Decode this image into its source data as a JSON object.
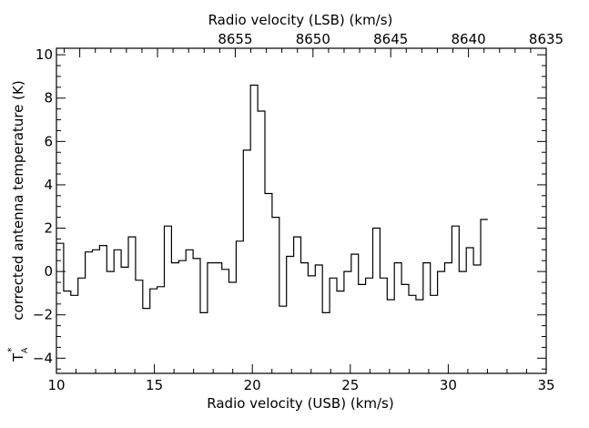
{
  "chart_data": {
    "type": "line",
    "style": "step",
    "xlabel": "Radio velocity (USB) (km/s)",
    "x2label": "Radio velocity (LSB) (km/s)",
    "ylabel": "corrected antenna temperature (K)",
    "ylabel_symbol": "T",
    "ylabel_sub": "A",
    "ylabel_sup": "*",
    "xlim": [
      10,
      35
    ],
    "ylim": [
      -4.7,
      10.3
    ],
    "x2lim": [
      8666.5,
      8635
    ],
    "xticks": [
      10,
      15,
      20,
      25,
      30,
      35
    ],
    "yticks": [
      -4,
      -2,
      0,
      2,
      4,
      6,
      8,
      10
    ],
    "x2ticks": [
      8655,
      8650,
      8645,
      8640,
      8635
    ],
    "xtick_labels": [
      "10",
      "15",
      "20",
      "25",
      "30",
      "35"
    ],
    "ytick_labels": [
      "−4",
      "−2",
      "0",
      "2",
      "4",
      "6",
      "8",
      "10"
    ],
    "x2tick_labels": [
      "8655",
      "8650",
      "8645",
      "8640",
      "8635"
    ],
    "grid": false,
    "series": [
      {
        "color": "#000000",
        "x_start": 10,
        "step": 0.367,
        "values": [
          1.3,
          -0.9,
          -1.1,
          -0.3,
          0.9,
          1.0,
          1.2,
          0.0,
          1.0,
          0.2,
          1.6,
          -0.4,
          -1.7,
          -0.8,
          -0.7,
          2.1,
          0.4,
          0.5,
          1.0,
          0.6,
          -1.9,
          0.4,
          0.4,
          0.1,
          -0.5,
          1.4,
          5.6,
          8.6,
          7.4,
          3.6,
          2.5,
          -1.6,
          0.7,
          1.6,
          0.4,
          -0.2,
          0.3,
          -1.9,
          -0.3,
          -0.9,
          0.0,
          0.8,
          -0.6,
          -0.3,
          2.0,
          -0.3,
          -1.3,
          0.4,
          -0.6,
          -1.1,
          -1.3,
          0.4,
          -1.1,
          0.0,
          0.4,
          2.1,
          0.0,
          1.1,
          0.3,
          2.4
        ]
      }
    ]
  }
}
